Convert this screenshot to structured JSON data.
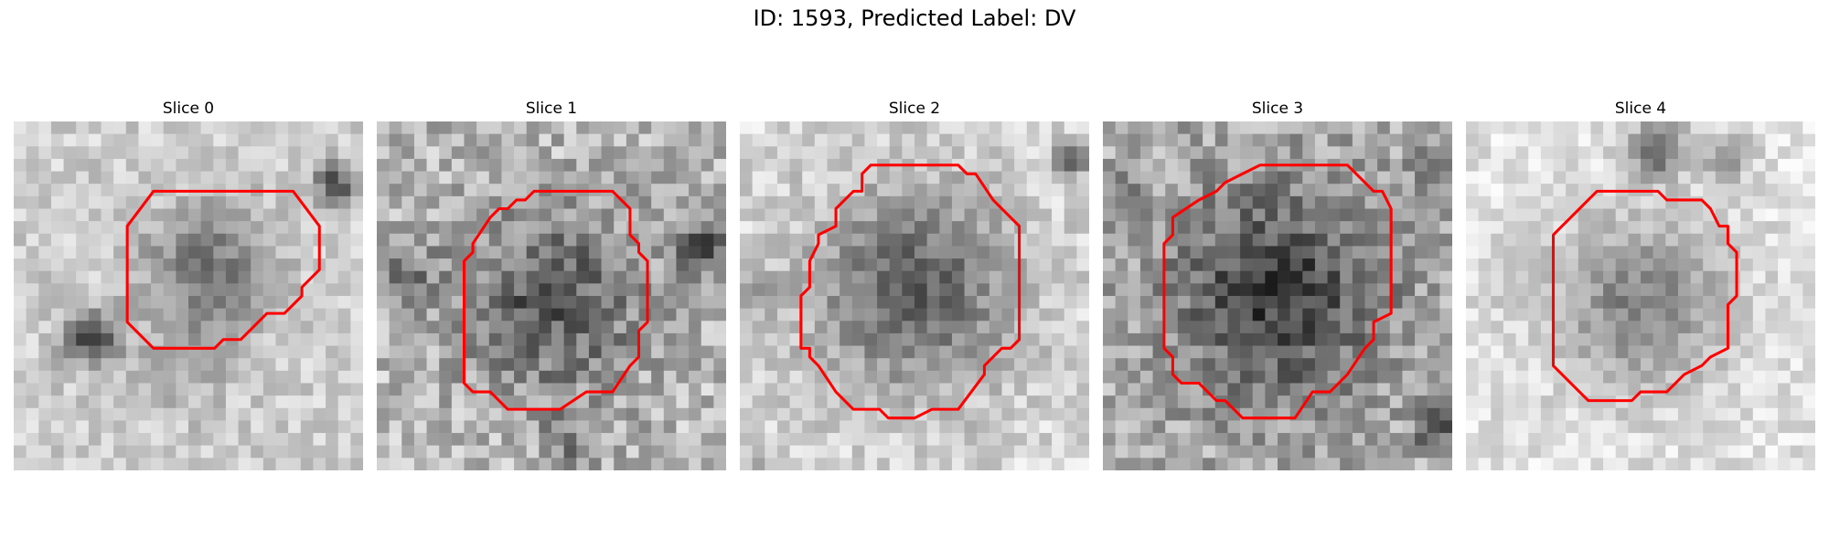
{
  "figure": {
    "title": "ID: 1593, Predicted Label: DV",
    "contour_color": "#ff0000"
  },
  "panels": [
    {
      "title": "Slice 0",
      "seed": 11,
      "blobs": [
        [
          0.55,
          0.42,
          0.22,
          -90
        ],
        [
          0.22,
          0.62,
          0.1,
          -130
        ],
        [
          0.92,
          0.18,
          0.08,
          -120
        ],
        [
          0.5,
          0.7,
          0.18,
          -30
        ]
      ],
      "noise": 60,
      "base": 205,
      "contour": [
        [
          8,
          4
        ],
        [
          16,
          4
        ],
        [
          17.5,
          6
        ],
        [
          17.5,
          8.5
        ],
        [
          16.5,
          9.5
        ],
        [
          16.5,
          10
        ],
        [
          15.5,
          11
        ],
        [
          14.5,
          11
        ],
        [
          13,
          12.5
        ],
        [
          12,
          12.5
        ],
        [
          11.5,
          13
        ],
        [
          8,
          13
        ],
        [
          6.5,
          11.5
        ],
        [
          6.5,
          6
        ]
      ]
    },
    {
      "title": "Slice 1",
      "seed": 23,
      "blobs": [
        [
          0.5,
          0.52,
          0.32,
          -100
        ],
        [
          0.92,
          0.36,
          0.1,
          -110
        ],
        [
          0.08,
          0.45,
          0.12,
          -70
        ],
        [
          0.55,
          0.92,
          0.1,
          -60
        ]
      ],
      "noise": 95,
      "base": 185,
      "contour": [
        [
          9,
          4
        ],
        [
          13.5,
          4
        ],
        [
          14.5,
          5
        ],
        [
          14.5,
          6.5
        ],
        [
          15,
          7
        ],
        [
          15,
          7.5
        ],
        [
          15.5,
          8
        ],
        [
          15.5,
          11.5
        ],
        [
          15,
          12
        ],
        [
          15,
          13.5
        ],
        [
          14.5,
          14
        ],
        [
          13.5,
          15.5
        ],
        [
          12,
          15.5
        ],
        [
          10.5,
          16.5
        ],
        [
          7.5,
          16.5
        ],
        [
          6.5,
          15.5
        ],
        [
          5.5,
          15.5
        ],
        [
          5,
          15
        ],
        [
          5,
          8
        ],
        [
          5.5,
          7.5
        ],
        [
          5.5,
          7
        ],
        [
          6.5,
          5.5
        ],
        [
          7,
          5
        ],
        [
          7.5,
          5
        ],
        [
          8,
          4.5
        ],
        [
          8.5,
          4.5
        ]
      ]
    },
    {
      "title": "Slice 2",
      "seed": 37,
      "blobs": [
        [
          0.5,
          0.48,
          0.36,
          -120
        ],
        [
          0.05,
          0.5,
          0.1,
          -50
        ],
        [
          0.95,
          0.1,
          0.06,
          -140
        ],
        [
          0.05,
          0.95,
          0.08,
          -30
        ]
      ],
      "noise": 65,
      "base": 215,
      "contour": [
        [
          7.5,
          2.5
        ],
        [
          12.5,
          2.5
        ],
        [
          13,
          3
        ],
        [
          13.5,
          3
        ],
        [
          14.5,
          4.5
        ],
        [
          15.5,
          5.5
        ],
        [
          16,
          6
        ],
        [
          16,
          12.5
        ],
        [
          15.5,
          13
        ],
        [
          15,
          13
        ],
        [
          14.5,
          13.5
        ],
        [
          14,
          14
        ],
        [
          14,
          14.5
        ],
        [
          12.5,
          16.5
        ],
        [
          11,
          16.5
        ],
        [
          10,
          17
        ],
        [
          8.5,
          17
        ],
        [
          8,
          16.5
        ],
        [
          6.5,
          16.5
        ],
        [
          5.5,
          15.5
        ],
        [
          4.5,
          14
        ],
        [
          4,
          13.5
        ],
        [
          4,
          13
        ],
        [
          3.5,
          13
        ],
        [
          3.5,
          10
        ],
        [
          4,
          9.5
        ],
        [
          4,
          8
        ],
        [
          4.5,
          7
        ],
        [
          4.5,
          6.5
        ],
        [
          5.5,
          6
        ],
        [
          5.5,
          5
        ],
        [
          6,
          4.5
        ],
        [
          6.5,
          4
        ],
        [
          7,
          4
        ],
        [
          7,
          3
        ]
      ]
    },
    {
      "title": "Slice 3",
      "seed": 51,
      "blobs": [
        [
          0.5,
          0.5,
          0.38,
          -115
        ],
        [
          0.95,
          0.15,
          0.08,
          -80
        ],
        [
          0.95,
          0.88,
          0.07,
          -110
        ],
        [
          0.05,
          0.2,
          0.08,
          -40
        ]
      ],
      "noise": 90,
      "base": 175,
      "contour": [
        [
          9,
          2.5
        ],
        [
          14,
          2.5
        ],
        [
          14.5,
          3
        ],
        [
          15,
          3.5
        ],
        [
          15.5,
          4
        ],
        [
          16,
          4
        ],
        [
          16.5,
          5
        ],
        [
          16.5,
          11
        ],
        [
          15.5,
          11.5
        ],
        [
          15.5,
          12.5
        ],
        [
          15,
          13
        ],
        [
          14,
          14.5
        ],
        [
          13,
          15.5
        ],
        [
          12,
          15.5
        ],
        [
          11,
          17
        ],
        [
          8,
          17
        ],
        [
          7,
          16
        ],
        [
          6.5,
          16
        ],
        [
          5.5,
          15
        ],
        [
          4.5,
          15
        ],
        [
          4,
          14.5
        ],
        [
          4,
          13.5
        ],
        [
          3.5,
          13
        ],
        [
          3.5,
          7
        ],
        [
          4,
          6.5
        ],
        [
          4,
          5.5
        ],
        [
          5.5,
          4.5
        ],
        [
          6.5,
          4
        ],
        [
          7,
          3.5
        ],
        [
          8,
          3
        ]
      ]
    },
    {
      "title": "Slice 4",
      "seed": 64,
      "blobs": [
        [
          0.5,
          0.52,
          0.3,
          -95
        ],
        [
          0.55,
          0.08,
          0.1,
          -130
        ],
        [
          0.1,
          0.45,
          0.1,
          -20
        ],
        [
          0.75,
          0.1,
          0.08,
          -90
        ]
      ],
      "noise": 55,
      "base": 225,
      "contour": [
        [
          8,
          4
        ],
        [
          11,
          4
        ],
        [
          11.5,
          4.5
        ],
        [
          13.5,
          4.5
        ],
        [
          14,
          5
        ],
        [
          14.5,
          6
        ],
        [
          15,
          6
        ],
        [
          15,
          7
        ],
        [
          15.5,
          7.5
        ],
        [
          15.5,
          10
        ],
        [
          15,
          10.5
        ],
        [
          15,
          13
        ],
        [
          14,
          13.5
        ],
        [
          13.5,
          14
        ],
        [
          12.5,
          14.5
        ],
        [
          11.5,
          15.5
        ],
        [
          10,
          15.5
        ],
        [
          9.5,
          16
        ],
        [
          7,
          16
        ],
        [
          5.5,
          14.5
        ],
        [
          5,
          14
        ],
        [
          5,
          6.5
        ],
        [
          5.5,
          6
        ],
        [
          6,
          5.5
        ],
        [
          6.5,
          5
        ],
        [
          7,
          4.5
        ],
        [
          7.5,
          4
        ]
      ]
    }
  ]
}
